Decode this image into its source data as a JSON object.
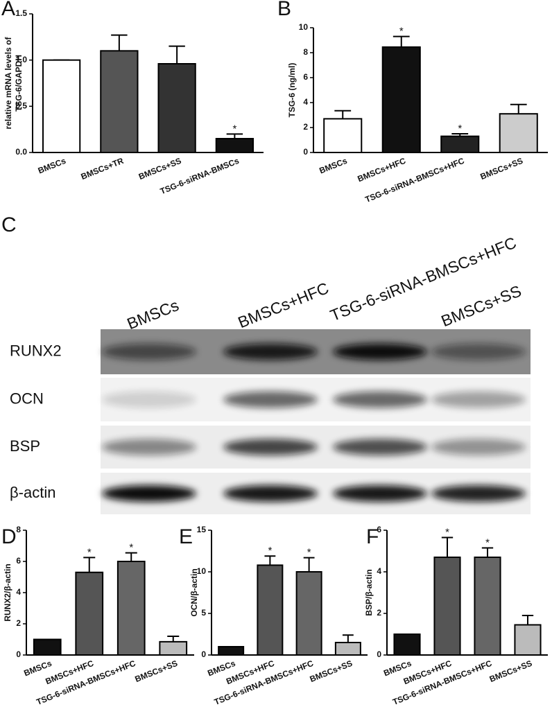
{
  "chart_data": [
    {
      "type": "bar",
      "label": "A",
      "ylabel": [
        "relative mRNA levels of",
        "TSG-6/GAPDH"
      ],
      "categories": [
        "BMSCs",
        "BMSCs+TR",
        "BMSCs+SS",
        "TSG-6-siRNA-BMSCs"
      ],
      "values": [
        1.0,
        1.1,
        0.96,
        0.15
      ],
      "errors": [
        0,
        0.17,
        0.19,
        0.05
      ],
      "colors": [
        "#ffffff",
        "#555555",
        "#333333",
        "#111111"
      ],
      "annotations": [
        {
          "index": 3,
          "text": "*"
        }
      ],
      "ylim": [
        0,
        1.5
      ],
      "yticks": [
        {
          "value": 0,
          "label": "0.0"
        },
        0.5,
        {
          "value": 1,
          "label": "1.0"
        },
        1.5
      ]
    },
    {
      "type": "bar",
      "label": "B",
      "ylabel": [
        "TSG-6 (ng/ml)"
      ],
      "categories": [
        "BMSCs",
        "BMSCs+HFC",
        "TSG-6-siRNA-BMSCs+HFC",
        "BMSCs+SS"
      ],
      "values": [
        2.7,
        8.45,
        1.3,
        3.1
      ],
      "errors": [
        0.65,
        0.85,
        0.2,
        0.75
      ],
      "colors": [
        "#ffffff",
        "#111111",
        "#222222",
        "#cccccc"
      ],
      "annotations": [
        {
          "index": 1,
          "text": "*"
        },
        {
          "index": 2,
          "text": "*"
        }
      ],
      "ylim": [
        0,
        10
      ],
      "yticks": [
        0,
        2,
        4,
        6,
        8,
        10
      ]
    },
    {
      "type": "bar",
      "label": "D",
      "ylabel": [
        "RUNX2/β-actin"
      ],
      "categories": [
        "BMSCs",
        "BMSCs+HFC",
        "TSG-6-siRNA-BMSCs+HFC",
        "BMSCs+SS"
      ],
      "values": [
        1,
        5.3,
        6.0,
        0.85
      ],
      "errors": [
        0,
        0.95,
        0.55,
        0.35
      ],
      "colors": [
        "#111111",
        "#555555",
        "#666666",
        "#bbbbbb"
      ],
      "annotations": [
        {
          "index": 1,
          "text": "*"
        },
        {
          "index": 2,
          "text": "*"
        }
      ],
      "ylim": [
        0,
        8
      ],
      "yticks": [
        0,
        2,
        4,
        6,
        8
      ]
    },
    {
      "type": "bar",
      "label": "E",
      "ylabel": [
        "OCN/β-actin"
      ],
      "categories": [
        "BMSCs",
        "BMSCs+HFC",
        "TSG-6-siRNA-BMSCs+HFC",
        "BMSCs+SS"
      ],
      "values": [
        1,
        10.8,
        10.0,
        1.5
      ],
      "errors": [
        0,
        1.1,
        1.7,
        0.9
      ],
      "colors": [
        "#111111",
        "#555555",
        "#666666",
        "#bbbbbb"
      ],
      "annotations": [
        {
          "index": 1,
          "text": "*"
        },
        {
          "index": 2,
          "text": "*"
        }
      ],
      "ylim": [
        0,
        15
      ],
      "yticks": [
        0,
        5,
        10,
        15
      ]
    },
    {
      "type": "bar",
      "label": "F",
      "ylabel": [
        "BSP/β-actin"
      ],
      "categories": [
        "BMSCs",
        "BMSCs+HFC",
        "TSG-6-siRNA-BMSCs+HFC",
        "BMSCs+SS"
      ],
      "values": [
        1,
        4.7,
        4.7,
        1.45
      ],
      "errors": [
        0,
        0.95,
        0.45,
        0.45
      ],
      "colors": [
        "#111111",
        "#555555",
        "#666666",
        "#bbbbbb"
      ],
      "annotations": [
        {
          "index": 1,
          "text": "*"
        },
        {
          "index": 2,
          "text": "*"
        }
      ],
      "ylim": [
        0,
        6
      ],
      "yticks": [
        0,
        2,
        4,
        6
      ]
    }
  ],
  "blot": {
    "label": "C",
    "columns": [
      "BMSCs",
      "BMSCs+HFC",
      "TSG-6-siRNA-BMSCs+HFC",
      "BMSCs+SS"
    ],
    "rows": [
      "RUNX2",
      "OCN",
      "BSP",
      "β-actin"
    ]
  }
}
